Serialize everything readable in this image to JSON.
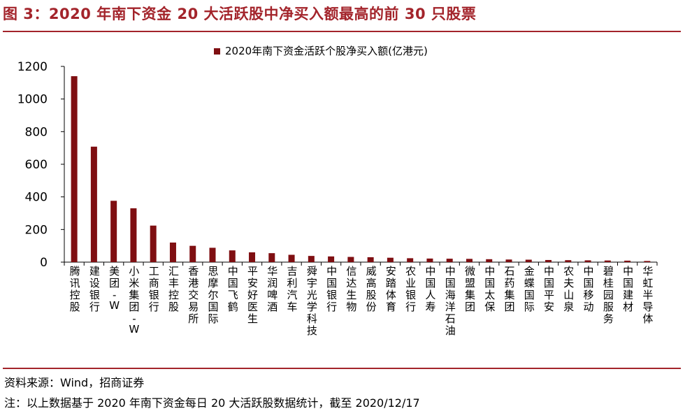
{
  "header": {
    "title": "图 3：2020 年南下资金 20 大活跃股中净买入额最高的前 30 只股票"
  },
  "footer": {
    "source": "资料来源：Wind，招商证券",
    "note": "注：以上数据基于 2020 年南下资金每日 20 大活跃股数据统计，截至 2020/12/17"
  },
  "colors": {
    "bar": "#7f0f12",
    "accent": "#a3242b"
  },
  "chart_data": {
    "type": "bar",
    "categories": [
      "腾讯控股",
      "建设银行",
      "美团-W",
      "小米集团-W",
      "工商银行",
      "汇丰控股",
      "香港交易所",
      "思摩尔国际",
      "中国飞鹤",
      "平安好医生",
      "华润啤酒",
      "吉利汽车",
      "舜宇光学科技",
      "中国银行",
      "信达生物",
      "威高股份",
      "安踏体育",
      "农业银行",
      "中国人寿",
      "中国海洋石油",
      "微盟集团",
      "中国太保",
      "石药集团",
      "金蝶国际",
      "中国平安",
      "农夫山泉",
      "中国移动",
      "碧桂园服务",
      "中国建材",
      "华虹半导体"
    ],
    "series": [
      {
        "name": "2020年南下资金活跃个股净买入额(亿港元)",
        "values": [
          1140,
          708,
          376,
          330,
          224,
          120,
          100,
          88,
          72,
          60,
          55,
          45,
          38,
          35,
          32,
          30,
          27,
          24,
          22,
          21,
          20,
          18,
          16,
          15,
          13,
          12,
          11,
          10,
          9,
          7
        ]
      }
    ],
    "yticks": [
      "0",
      "200",
      "400",
      "600",
      "800",
      "1000",
      "1200"
    ],
    "ylim": [
      0,
      1200
    ],
    "legend_position": "top-center",
    "grid": false
  }
}
